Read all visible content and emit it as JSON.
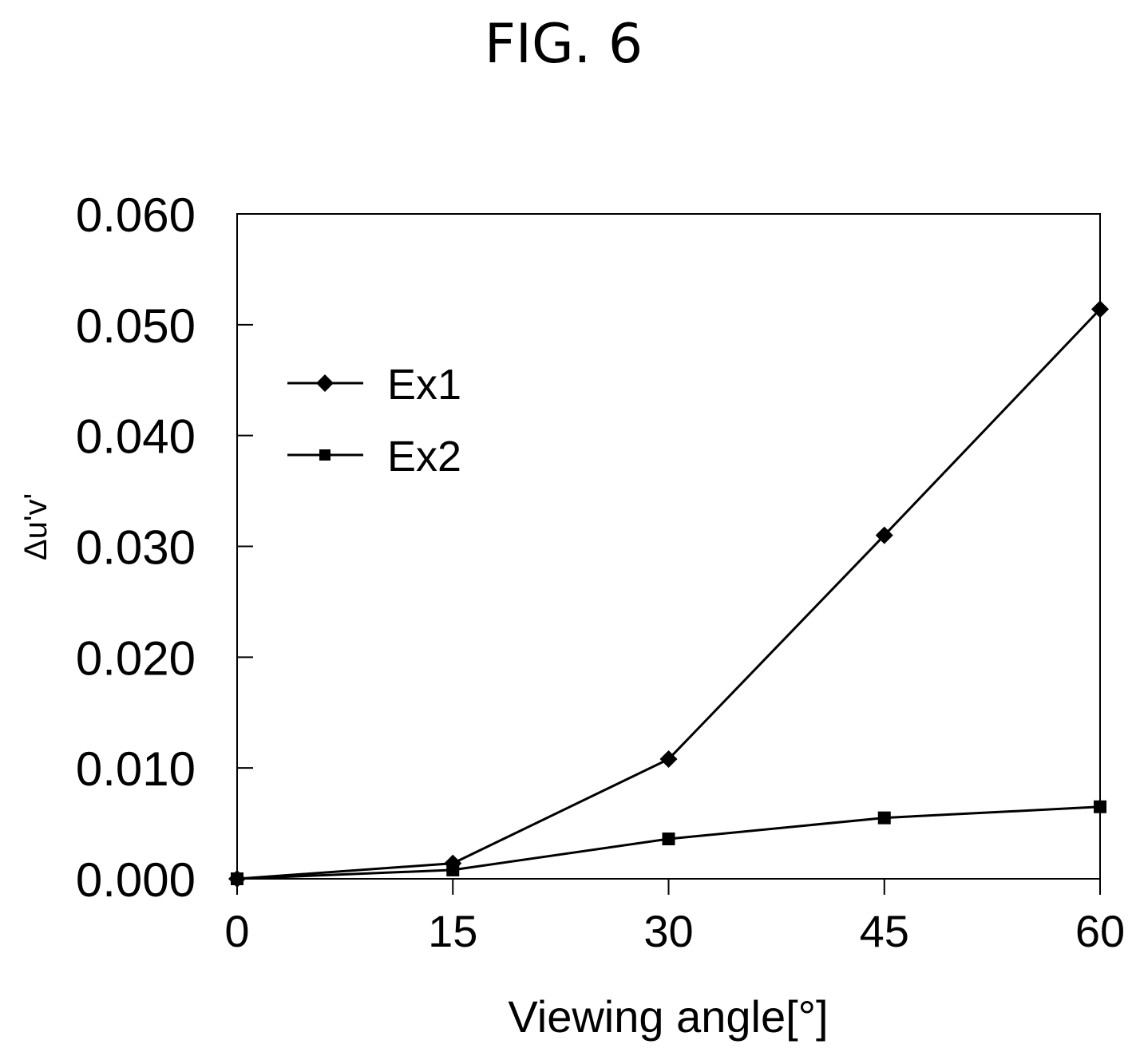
{
  "figure_label": "FIG. 6",
  "chart_data": {
    "type": "line",
    "x": [
      0,
      15,
      30,
      45,
      60
    ],
    "xlim": [
      0,
      60
    ],
    "xticks": [
      0,
      15,
      30,
      45,
      60
    ],
    "xtick_labels": [
      "0",
      "15",
      "30",
      "45",
      "60"
    ],
    "ylim": [
      0,
      0.06
    ],
    "yticks": [
      0,
      0.01,
      0.02,
      0.03,
      0.04,
      0.05,
      0.06
    ],
    "ytick_labels": [
      "0.000",
      "0.010",
      "0.020",
      "0.030",
      "0.040",
      "0.050",
      "0.060"
    ],
    "xlabel": "Viewing angle[°]",
    "ylabel": "Δu'v'",
    "grid": false,
    "legend_position": "upper-left",
    "series": [
      {
        "name": "Ex1",
        "marker": "diamond",
        "color": "#000000",
        "values": [
          0,
          0.0014,
          0.0108,
          0.031,
          0.0514
        ]
      },
      {
        "name": "Ex2",
        "marker": "square",
        "color": "#000000",
        "values": [
          0,
          0.0008,
          0.0036,
          0.0055,
          0.0065
        ]
      }
    ]
  }
}
